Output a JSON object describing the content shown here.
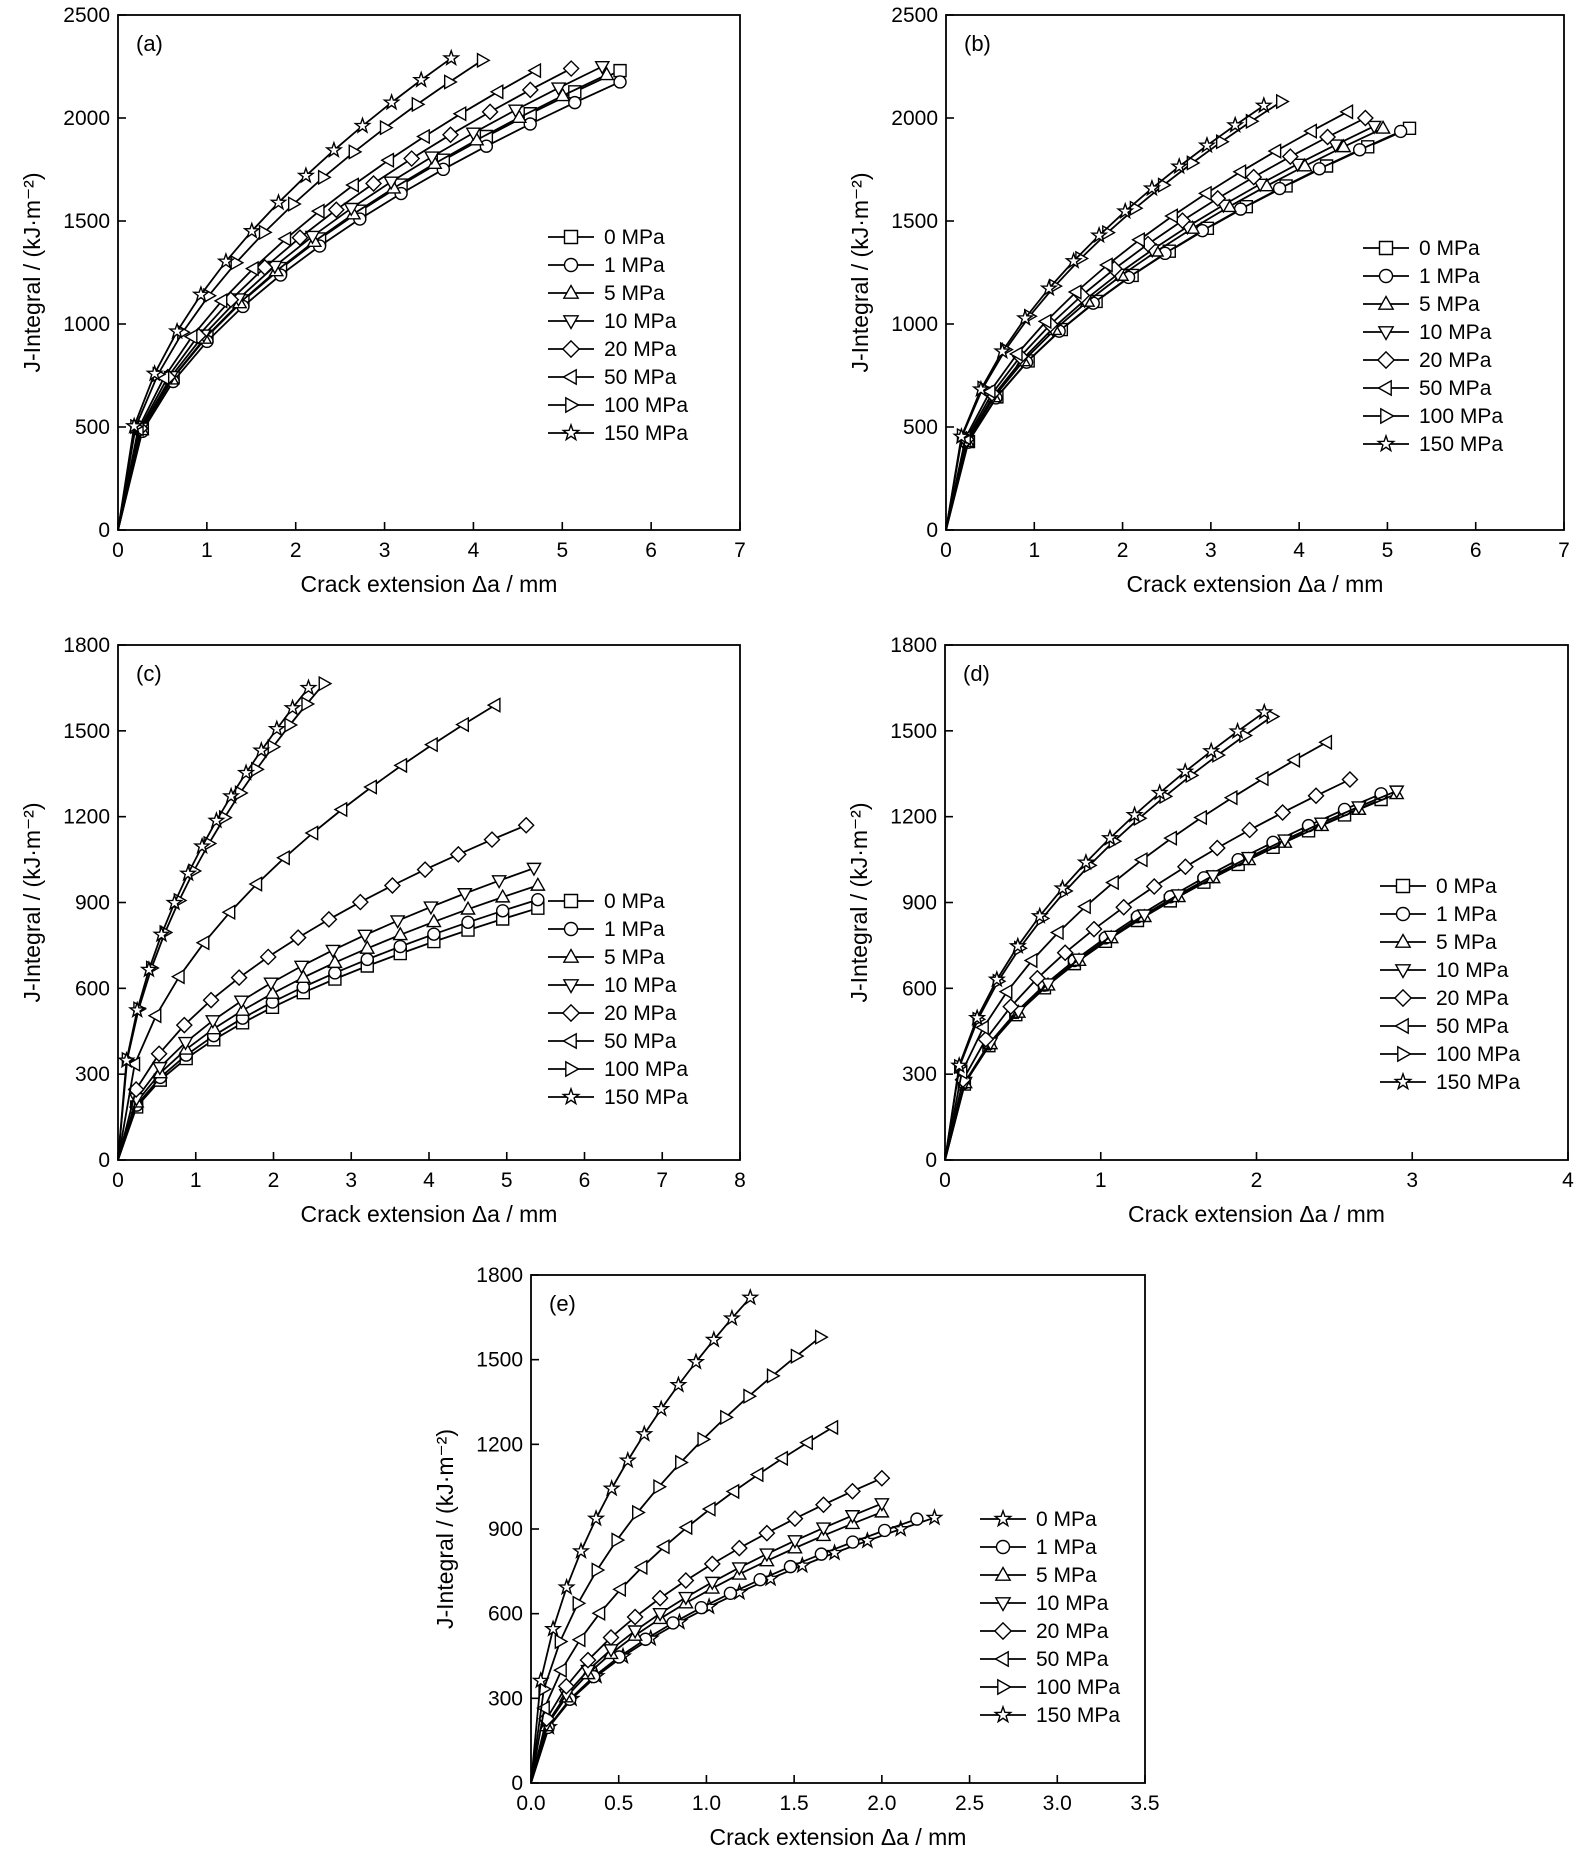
{
  "figure": {
    "marker_shapes": [
      "square",
      "circle",
      "triangle-up",
      "triangle-down",
      "diamond",
      "triangle-left",
      "triangle-right",
      "star"
    ],
    "line_color": "#000000",
    "marker_fill": "#ffffff"
  },
  "chart_data": [
    {
      "id": "a",
      "type": "line",
      "panel_label": "(a)",
      "xlabel": "Crack extension Δa / mm",
      "ylabel": "J-Integral / (kJ·m⁻²)",
      "xlim": [
        0,
        7
      ],
      "ylim": [
        0,
        2500
      ],
      "xticks": [
        0,
        1,
        2,
        3,
        4,
        5,
        6,
        7
      ],
      "yticks": [
        0,
        500,
        1000,
        1500,
        2000,
        2500
      ],
      "xtick_labels": [
        "0",
        "1",
        "2",
        "3",
        "4",
        "5",
        "6",
        "7"
      ],
      "ytick_labels": [
        "0",
        "500",
        "1000",
        "1500",
        "2000",
        "2500"
      ],
      "legend_position": "right-middle",
      "series": [
        {
          "name": "0 MPa",
          "marker": "square",
          "xmax": 5.65,
          "ymax": 2230
        },
        {
          "name": "1 MPa",
          "marker": "circle",
          "xmax": 5.65,
          "ymax": 2175
        },
        {
          "name": "5 MPa",
          "marker": "triangle-up",
          "xmax": 5.5,
          "ymax": 2210
        },
        {
          "name": "10 MPa",
          "marker": "triangle-down",
          "xmax": 5.45,
          "ymax": 2250
        },
        {
          "name": "20 MPa",
          "marker": "diamond",
          "xmax": 5.1,
          "ymax": 2240
        },
        {
          "name": "50 MPa",
          "marker": "triangle-left",
          "xmax": 4.7,
          "ymax": 2230
        },
        {
          "name": "100 MPa",
          "marker": "triangle-right",
          "xmax": 4.1,
          "ymax": 2280
        },
        {
          "name": "150 MPa",
          "marker": "star",
          "xmax": 3.75,
          "ymax": 2290
        }
      ]
    },
    {
      "id": "b",
      "type": "line",
      "panel_label": "(b)",
      "xlabel": "Crack extension Δa / mm",
      "ylabel": "J-Integral / (kJ·m⁻²)",
      "xlim": [
        0,
        7
      ],
      "ylim": [
        0,
        2500
      ],
      "xticks": [
        0,
        1,
        2,
        3,
        4,
        5,
        6,
        7
      ],
      "yticks": [
        0,
        500,
        1000,
        1500,
        2000,
        2500
      ],
      "xtick_labels": [
        "0",
        "1",
        "2",
        "3",
        "4",
        "5",
        "6",
        "7"
      ],
      "ytick_labels": [
        "0",
        "500",
        "1000",
        "1500",
        "2000",
        "2500"
      ],
      "legend_position": "right-middle",
      "series": [
        {
          "name": "0 MPa",
          "marker": "square",
          "xmax": 5.25,
          "ymax": 1950
        },
        {
          "name": "1 MPa",
          "marker": "circle",
          "xmax": 5.15,
          "ymax": 1935
        },
        {
          "name": "5 MPa",
          "marker": "triangle-up",
          "xmax": 4.95,
          "ymax": 1950
        },
        {
          "name": "10 MPa",
          "marker": "triangle-down",
          "xmax": 4.85,
          "ymax": 1960
        },
        {
          "name": "20 MPa",
          "marker": "diamond",
          "xmax": 4.75,
          "ymax": 2000
        },
        {
          "name": "50 MPa",
          "marker": "triangle-left",
          "xmax": 4.55,
          "ymax": 2030
        },
        {
          "name": "100 MPa",
          "marker": "triangle-right",
          "xmax": 3.8,
          "ymax": 2080
        },
        {
          "name": "150 MPa",
          "marker": "star",
          "xmax": 3.6,
          "ymax": 2060
        }
      ]
    },
    {
      "id": "c",
      "type": "line",
      "panel_label": "(c)",
      "xlabel": "Crack extension Δa / mm",
      "ylabel": "J-Integral / (kJ·m⁻²)",
      "xlim": [
        0,
        8
      ],
      "ylim": [
        0,
        1800
      ],
      "xticks": [
        0,
        1,
        2,
        3,
        4,
        5,
        6,
        7,
        8
      ],
      "yticks": [
        0,
        300,
        600,
        900,
        1200,
        1500,
        1800
      ],
      "xtick_labels": [
        "0",
        "1",
        "2",
        "3",
        "4",
        "5",
        "6",
        "7",
        "8"
      ],
      "ytick_labels": [
        "0",
        "300",
        "600",
        "900",
        "1200",
        "1500",
        "1800"
      ],
      "legend_position": "right-lower",
      "series": [
        {
          "name": "0 MPa",
          "marker": "square",
          "xmax": 5.4,
          "ymax": 880
        },
        {
          "name": "1 MPa",
          "marker": "circle",
          "xmax": 5.4,
          "ymax": 910
        },
        {
          "name": "5 MPa",
          "marker": "triangle-up",
          "xmax": 5.4,
          "ymax": 960
        },
        {
          "name": "10 MPa",
          "marker": "triangle-down",
          "xmax": 5.35,
          "ymax": 1020
        },
        {
          "name": "20 MPa",
          "marker": "diamond",
          "xmax": 5.25,
          "ymax": 1170
        },
        {
          "name": "50 MPa",
          "marker": "triangle-left",
          "xmax": 4.85,
          "ymax": 1590
        },
        {
          "name": "100 MPa",
          "marker": "triangle-right",
          "xmax": 2.65,
          "ymax": 1665
        },
        {
          "name": "150 MPa",
          "marker": "star",
          "xmax": 2.45,
          "ymax": 1650
        }
      ]
    },
    {
      "id": "d",
      "type": "line",
      "panel_label": "(d)",
      "xlabel": "Crack extension Δa / mm",
      "ylabel": "J-Integral / (kJ·m⁻²)",
      "xlim": [
        0,
        4
      ],
      "ylim": [
        0,
        1800
      ],
      "xticks": [
        0,
        1,
        2,
        3,
        4
      ],
      "yticks": [
        0,
        300,
        600,
        900,
        1200,
        1500,
        1800
      ],
      "xtick_labels": [
        "0",
        "1",
        "2",
        "3",
        "4"
      ],
      "ytick_labels": [
        "0",
        "300",
        "600",
        "900",
        "1200",
        "1500",
        "1800"
      ],
      "legend_position": "right-lower",
      "series": [
        {
          "name": "0 MPa",
          "marker": "square",
          "xmax": 2.8,
          "ymax": 1260
        },
        {
          "name": "1 MPa",
          "marker": "circle",
          "xmax": 2.8,
          "ymax": 1280
        },
        {
          "name": "5 MPa",
          "marker": "triangle-up",
          "xmax": 2.9,
          "ymax": 1280
        },
        {
          "name": "10 MPa",
          "marker": "triangle-down",
          "xmax": 2.9,
          "ymax": 1290
        },
        {
          "name": "20 MPa",
          "marker": "diamond",
          "xmax": 2.6,
          "ymax": 1330
        },
        {
          "name": "50 MPa",
          "marker": "triangle-left",
          "xmax": 2.45,
          "ymax": 1460
        },
        {
          "name": "100 MPa",
          "marker": "triangle-right",
          "xmax": 2.1,
          "ymax": 1550
        },
        {
          "name": "150 MPa",
          "marker": "star",
          "xmax": 2.05,
          "ymax": 1565
        }
      ]
    },
    {
      "id": "e",
      "type": "line",
      "panel_label": "(e)",
      "xlabel": "Crack extension Δa / mm",
      "ylabel": "J-Integral / (kJ·m⁻²)",
      "xlim": [
        0,
        3.5
      ],
      "ylim": [
        0,
        1800
      ],
      "xticks": [
        0,
        0.5,
        1,
        1.5,
        2,
        2.5,
        3,
        3.5
      ],
      "yticks": [
        0,
        300,
        600,
        900,
        1200,
        1500,
        1800
      ],
      "xtick_labels": [
        "0.0",
        "0.5",
        "1.0",
        "1.5",
        "2.0",
        "2.5",
        "3.0",
        "3.5"
      ],
      "ytick_labels": [
        "0",
        "300",
        "600",
        "900",
        "1200",
        "1500",
        "1800"
      ],
      "legend_position": "right-middle",
      "series": [
        {
          "name": "0 MPa",
          "marker": "star",
          "xmax": 2.3,
          "ymax": 940
        },
        {
          "name": "1 MPa",
          "marker": "circle",
          "xmax": 2.2,
          "ymax": 935
        },
        {
          "name": "5 MPa",
          "marker": "triangle-up",
          "xmax": 2.0,
          "ymax": 960
        },
        {
          "name": "10 MPa",
          "marker": "triangle-down",
          "xmax": 2.0,
          "ymax": 990
        },
        {
          "name": "20 MPa",
          "marker": "diamond",
          "xmax": 2.0,
          "ymax": 1080
        },
        {
          "name": "50 MPa",
          "marker": "triangle-left",
          "xmax": 1.72,
          "ymax": 1260
        },
        {
          "name": "100 MPa",
          "marker": "triangle-right",
          "xmax": 1.65,
          "ymax": 1580
        },
        {
          "name": "150 MPa",
          "marker": "star",
          "xmax": 1.25,
          "ymax": 1720
        }
      ]
    }
  ]
}
